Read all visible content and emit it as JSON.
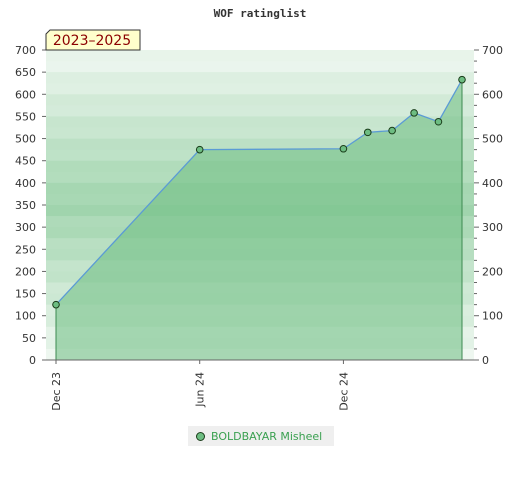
{
  "chart_data": {
    "type": "area",
    "title": "WOF ratinglist",
    "period_label": "2023–2025",
    "series": [
      {
        "name": "BOLDBAYAR Misheel",
        "points": [
          {
            "x": "2023-12-01",
            "y": 125
          },
          {
            "x": "2024-06-01",
            "y": 475
          },
          {
            "x": "2024-12-01",
            "y": 477
          },
          {
            "x": "2025-01-01",
            "y": 514
          },
          {
            "x": "2025-02-01",
            "y": 518
          },
          {
            "x": "2025-03-01",
            "y": 558
          },
          {
            "x": "2025-04-01",
            "y": 538
          },
          {
            "x": "2025-05-01",
            "y": 633
          }
        ]
      }
    ],
    "x_ticks": [
      {
        "x": "2023-12-01",
        "label": "Dec 23"
      },
      {
        "x": "2024-06-01",
        "label": "Jun 24"
      },
      {
        "x": "2024-12-01",
        "label": "Dec 24"
      }
    ],
    "y_ticks_left": [
      0,
      50,
      100,
      150,
      200,
      250,
      300,
      350,
      400,
      450,
      500,
      550,
      600,
      650,
      700
    ],
    "y_ticks_right": [
      0,
      100,
      200,
      300,
      400,
      500,
      600,
      700
    ],
    "ylim": [
      0,
      700
    ],
    "grid": false,
    "legend": "bottom",
    "colors": {
      "line": "#5b9bd5",
      "fill": "#6dbd82",
      "marker": "#6dbd82",
      "marker_edge": "#1a3d1a",
      "legend_text": "#3aa050",
      "badge_bg": "#ffffcc",
      "badge_text": "#8b0000"
    }
  }
}
